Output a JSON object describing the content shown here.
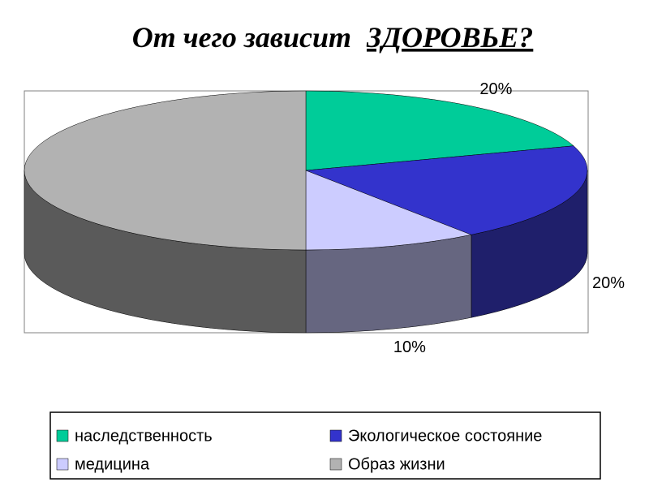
{
  "chart_data": {
    "type": "pie3d",
    "title_parts": [
      "От чего зависит",
      "ЗДОРОВЬЕ?"
    ],
    "categories": [
      "наследственность",
      "Экологическое состояние",
      "медицина",
      "Образ жизни"
    ],
    "values": [
      20,
      20,
      10,
      50
    ],
    "value_labels": [
      "20%",
      "20%",
      "10%",
      null
    ],
    "colors": [
      "#00cc99",
      "#3333cc",
      "#ccccff",
      "#b2b2b2"
    ],
    "side_colors": [
      "#007a5c",
      "#1f1f6b",
      "#666680",
      "#5a5a5a"
    ],
    "legend": "bottom"
  }
}
